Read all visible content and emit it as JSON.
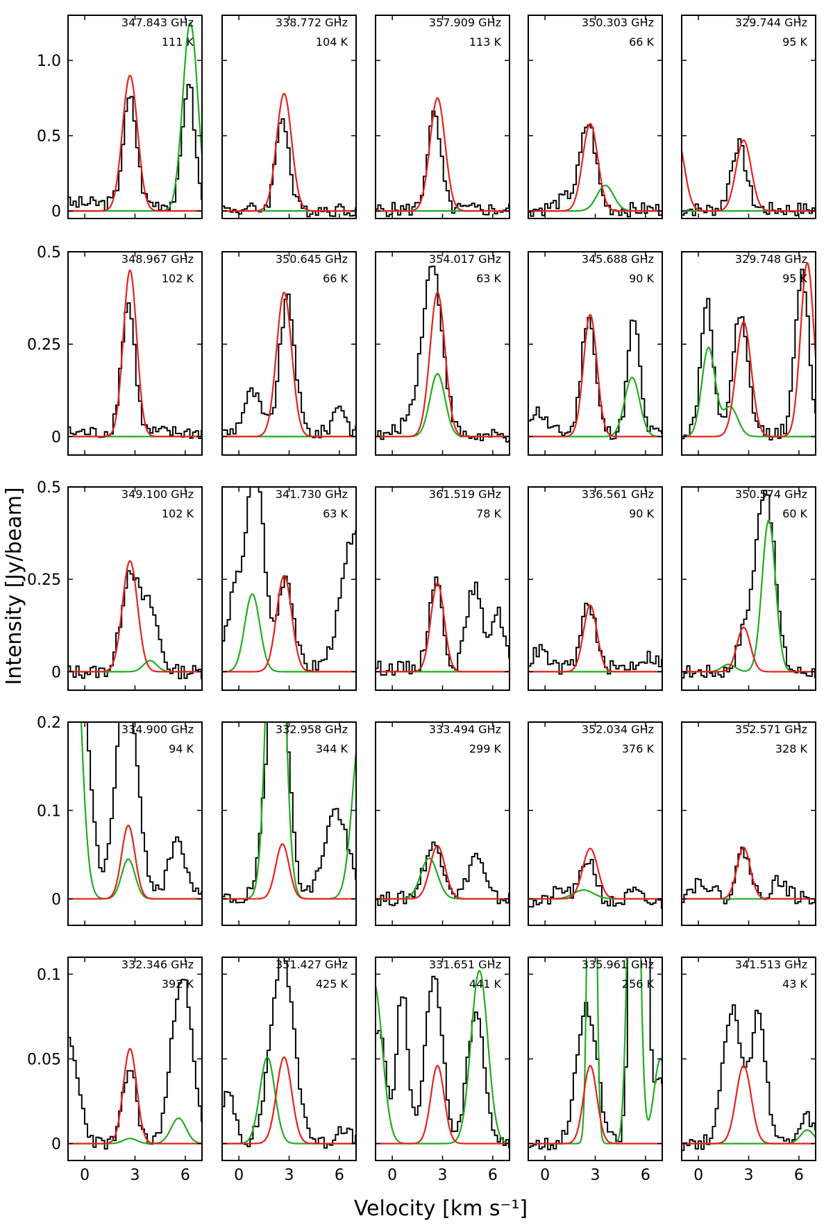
{
  "figure": {
    "ylabel": "Intensity [Jy/beam]",
    "xlabel": "Velocity [km s⁻¹]",
    "xlim": [
      -1,
      7
    ],
    "xticks": [
      0,
      3,
      6
    ],
    "series_colors": {
      "observed": "#000000",
      "model_total": "#e8201a",
      "model_other": "#22aa22"
    }
  },
  "rows": [
    {
      "ylim": [
        -0.05,
        1.3
      ],
      "yticks": [
        0,
        0.5,
        1.0
      ],
      "ytick_labels": [
        "0",
        "0.5",
        "1.0"
      ]
    },
    {
      "ylim": [
        -0.05,
        0.5
      ],
      "yticks": [
        0,
        0.25,
        0.5
      ],
      "ytick_labels": [
        "0",
        "0.25",
        "0.5"
      ]
    },
    {
      "ylim": [
        -0.05,
        0.5
      ],
      "yticks": [
        0,
        0.25,
        0.5
      ],
      "ytick_labels": [
        "0",
        "0.25",
        "0.5"
      ]
    },
    {
      "ylim": [
        -0.03,
        0.2
      ],
      "yticks": [
        0,
        0.1,
        0.2
      ],
      "ytick_labels": [
        "0",
        "0.1",
        "0.2"
      ]
    },
    {
      "ylim": [
        -0.01,
        0.11
      ],
      "yticks": [
        0,
        0.05,
        0.1
      ],
      "ytick_labels": [
        "0",
        "0.05",
        "0.1"
      ]
    }
  ],
  "chart_data": [
    {
      "type": "line",
      "frequency": "347.843 GHz",
      "energy": "111 K",
      "red": [
        [
          2.7,
          0.9,
          0.45
        ]
      ],
      "green": [
        [
          6.3,
          1.25,
          0.45
        ]
      ],
      "obs": [
        [
          2.7,
          0.7,
          0.4
        ],
        [
          6.2,
          0.82,
          0.35
        ]
      ],
      "base": 0.05
    },
    {
      "type": "line",
      "frequency": "338.772 GHz",
      "energy": "104 K",
      "red": [
        [
          2.7,
          0.78,
          0.45
        ]
      ],
      "green": [],
      "obs": [
        [
          2.6,
          0.63,
          0.38
        ]
      ],
      "base": 0.01
    },
    {
      "type": "line",
      "frequency": "357.909 GHz",
      "energy": "113 K",
      "red": [
        [
          2.7,
          0.75,
          0.45
        ]
      ],
      "green": [],
      "obs": [
        [
          2.5,
          0.62,
          0.4
        ]
      ],
      "base": 0.01
    },
    {
      "type": "line",
      "frequency": "350.303 GHz",
      "energy": "66 K",
      "red": [
        [
          2.7,
          0.58,
          0.45
        ]
      ],
      "green": [
        [
          3.6,
          0.17,
          0.5
        ]
      ],
      "obs": [
        [
          2.6,
          0.55,
          0.45
        ],
        [
          1.5,
          0.08,
          0.7
        ]
      ],
      "base": 0.01
    },
    {
      "type": "line",
      "frequency": "329.744 GHz",
      "energy": "95 K",
      "red": [
        [
          2.7,
          0.47,
          0.45
        ],
        [
          -1.3,
          0.5,
          0.45
        ]
      ],
      "green": [],
      "obs": [
        [
          2.4,
          0.43,
          0.45
        ]
      ],
      "base": 0.01
    },
    {
      "type": "line",
      "frequency": "348.967 GHz",
      "energy": "102 K",
      "red": [
        [
          2.7,
          0.45,
          0.4
        ]
      ],
      "green": [],
      "obs": [
        [
          2.6,
          0.35,
          0.4
        ]
      ],
      "base": 0.01
    },
    {
      "type": "line",
      "frequency": "350.645 GHz",
      "energy": "66 K",
      "red": [
        [
          2.7,
          0.39,
          0.45
        ]
      ],
      "green": [],
      "obs": [
        [
          2.9,
          0.36,
          0.45
        ],
        [
          0.8,
          0.11,
          0.5
        ],
        [
          6.0,
          0.08,
          0.35
        ]
      ],
      "base": 0.01
    },
    {
      "type": "line",
      "frequency": "354.017 GHz",
      "energy": "63 K",
      "red": [
        [
          2.7,
          0.39,
          0.45
        ]
      ],
      "green": [
        [
          2.7,
          0.17,
          0.45
        ]
      ],
      "obs": [
        [
          2.4,
          0.46,
          0.6
        ],
        [
          1.0,
          0.04,
          0.6
        ]
      ],
      "base": 0.0
    },
    {
      "type": "line",
      "frequency": "345.688 GHz",
      "energy": "90 K",
      "red": [
        [
          2.7,
          0.33,
          0.4
        ]
      ],
      "green": [
        [
          5.2,
          0.16,
          0.45
        ]
      ],
      "obs": [
        [
          2.6,
          0.32,
          0.4
        ],
        [
          5.3,
          0.31,
          0.35
        ],
        [
          -0.5,
          0.06,
          0.5
        ]
      ],
      "base": 0.01
    },
    {
      "type": "line",
      "frequency": "329.748 GHz",
      "energy": "95 K",
      "red": [
        [
          2.7,
          0.31,
          0.45
        ],
        [
          6.5,
          0.47,
          0.4
        ]
      ],
      "green": [
        [
          0.6,
          0.24,
          0.4
        ],
        [
          1.9,
          0.08,
          0.45
        ]
      ],
      "obs": [
        [
          0.5,
          0.36,
          0.35
        ],
        [
          2.5,
          0.31,
          0.45
        ],
        [
          6.2,
          0.43,
          0.4
        ]
      ],
      "base": 0.01
    },
    {
      "type": "line",
      "frequency": "349.100 GHz",
      "energy": "102 K",
      "red": [
        [
          2.7,
          0.3,
          0.45
        ]
      ],
      "green": [
        [
          3.9,
          0.03,
          0.4
        ]
      ],
      "obs": [
        [
          2.7,
          0.27,
          0.5
        ],
        [
          3.9,
          0.17,
          0.5
        ]
      ],
      "base": 0.0
    },
    {
      "type": "line",
      "frequency": "341.730 GHz",
      "energy": "63 K",
      "red": [
        [
          2.7,
          0.26,
          0.45
        ]
      ],
      "green": [
        [
          0.8,
          0.21,
          0.45
        ]
      ],
      "obs": [
        [
          1.0,
          0.55,
          0.5
        ],
        [
          -0.2,
          0.2,
          0.5
        ],
        [
          2.8,
          0.25,
          0.45
        ],
        [
          7.0,
          0.38,
          0.8
        ]
      ],
      "base": 0.01
    },
    {
      "type": "line",
      "frequency": "361.519 GHz",
      "energy": "78 K",
      "red": [
        [
          2.7,
          0.24,
          0.4
        ]
      ],
      "green": [],
      "obs": [
        [
          2.6,
          0.24,
          0.4
        ],
        [
          4.9,
          0.22,
          0.45
        ],
        [
          6.3,
          0.15,
          0.4
        ]
      ],
      "base": 0.01
    },
    {
      "type": "line",
      "frequency": "336.561 GHz",
      "energy": "90 K",
      "red": [
        [
          2.7,
          0.18,
          0.4
        ]
      ],
      "green": [],
      "obs": [
        [
          2.6,
          0.18,
          0.4
        ],
        [
          -0.3,
          0.05,
          0.4
        ],
        [
          6.2,
          0.03,
          0.6
        ]
      ],
      "base": 0.01
    },
    {
      "type": "line",
      "frequency": "350.574 GHz",
      "energy": "60 K",
      "red": [
        [
          2.7,
          0.12,
          0.4
        ]
      ],
      "green": [
        [
          4.2,
          0.41,
          0.4
        ],
        [
          1.8,
          0.02,
          0.4
        ]
      ],
      "obs": [
        [
          4.0,
          0.5,
          0.55
        ],
        [
          2.8,
          0.1,
          0.45
        ]
      ],
      "base": 0.0
    },
    {
      "type": "line",
      "frequency": "334.900 GHz",
      "energy": "94 K",
      "red": [
        [
          2.6,
          0.083,
          0.4
        ]
      ],
      "green": [
        [
          2.6,
          0.045,
          0.4
        ],
        [
          -0.8,
          0.4,
          0.5
        ]
      ],
      "obs": [
        [
          -0.5,
          0.35,
          0.6
        ],
        [
          2.5,
          0.24,
          0.6
        ],
        [
          5.5,
          0.06,
          0.4
        ]
      ],
      "base": 0.01
    },
    {
      "type": "line",
      "frequency": "332.958 GHz",
      "energy": "344 K",
      "red": [
        [
          2.6,
          0.062,
          0.4
        ]
      ],
      "green": [
        [
          2.2,
          0.55,
          0.45
        ],
        [
          7.3,
          0.2,
          0.5
        ]
      ],
      "obs": [
        [
          2.3,
          0.3,
          0.6
        ],
        [
          5.8,
          0.1,
          0.7
        ]
      ],
      "base": 0.0
    },
    {
      "type": "line",
      "frequency": "333.494 GHz",
      "energy": "299 K",
      "red": [
        [
          2.7,
          0.06,
          0.45
        ]
      ],
      "green": [
        [
          2.2,
          0.046,
          0.5
        ]
      ],
      "obs": [
        [
          2.5,
          0.06,
          0.6
        ],
        [
          5.0,
          0.05,
          0.45
        ]
      ],
      "base": 0.0
    },
    {
      "type": "line",
      "frequency": "352.034 GHz",
      "energy": "376 K",
      "red": [
        [
          2.7,
          0.057,
          0.45
        ]
      ],
      "green": [
        [
          2.3,
          0.01,
          0.6
        ]
      ],
      "obs": [
        [
          2.6,
          0.05,
          0.45
        ],
        [
          1.0,
          0.015,
          0.5
        ],
        [
          5.3,
          0.012,
          0.4
        ]
      ],
      "base": -0.005
    },
    {
      "type": "line",
      "frequency": "352.571 GHz",
      "energy": "328 K",
      "red": [
        [
          2.7,
          0.058,
          0.4
        ]
      ],
      "green": [],
      "obs": [
        [
          2.7,
          0.055,
          0.4
        ],
        [
          0.2,
          0.02,
          0.6
        ],
        [
          4.8,
          0.02,
          0.5
        ]
      ],
      "base": 0.0
    },
    {
      "type": "line",
      "frequency": "332.346 GHz",
      "energy": "392 K",
      "red": [
        [
          2.7,
          0.056,
          0.4
        ]
      ],
      "green": [
        [
          5.6,
          0.015,
          0.45
        ],
        [
          2.7,
          0.003,
          0.4
        ]
      ],
      "obs": [
        [
          2.7,
          0.045,
          0.4
        ],
        [
          5.8,
          0.1,
          0.6
        ],
        [
          -1.0,
          0.06,
          0.6
        ]
      ],
      "base": 0.0
    },
    {
      "type": "line",
      "frequency": "351.427 GHz",
      "energy": "425 K",
      "red": [
        [
          2.7,
          0.051,
          0.45
        ]
      ],
      "green": [
        [
          1.7,
          0.051,
          0.45
        ]
      ],
      "obs": [
        [
          2.6,
          0.11,
          0.7
        ],
        [
          -0.6,
          0.03,
          0.4
        ],
        [
          6.2,
          0.01,
          0.4
        ]
      ],
      "base": 0.0
    },
    {
      "type": "line",
      "frequency": "331.651 GHz",
      "energy": "441 K",
      "red": [
        [
          2.7,
          0.046,
          0.4
        ]
      ],
      "green": [
        [
          5.2,
          0.102,
          0.5
        ],
        [
          -1.1,
          0.095,
          0.5
        ]
      ],
      "obs": [
        [
          0.6,
          0.09,
          0.35
        ],
        [
          2.5,
          0.1,
          0.5
        ],
        [
          -0.8,
          0.07,
          0.4
        ],
        [
          5.0,
          0.08,
          0.5
        ]
      ],
      "base": 0.0
    },
    {
      "type": "line",
      "frequency": "335.961 GHz",
      "energy": "256 K",
      "red": [
        [
          2.7,
          0.046,
          0.4
        ]
      ],
      "green": [
        [
          2.8,
          0.4,
          0.2
        ],
        [
          5.3,
          0.3,
          0.3
        ],
        [
          6.9,
          0.05,
          0.4
        ]
      ],
      "obs": [
        [
          2.5,
          0.08,
          0.6
        ],
        [
          5.6,
          0.5,
          0.35
        ],
        [
          6.9,
          0.04,
          0.3
        ]
      ],
      "base": 0.0
    },
    {
      "type": "line",
      "frequency": "341.513 GHz",
      "energy": "43 K",
      "red": [
        [
          2.7,
          0.046,
          0.45
        ]
      ],
      "green": [
        [
          6.5,
          0.008,
          0.4
        ]
      ],
      "obs": [
        [
          2.0,
          0.08,
          0.55
        ],
        [
          3.6,
          0.075,
          0.45
        ],
        [
          6.5,
          0.015,
          0.4
        ]
      ],
      "base": 0.0
    }
  ]
}
